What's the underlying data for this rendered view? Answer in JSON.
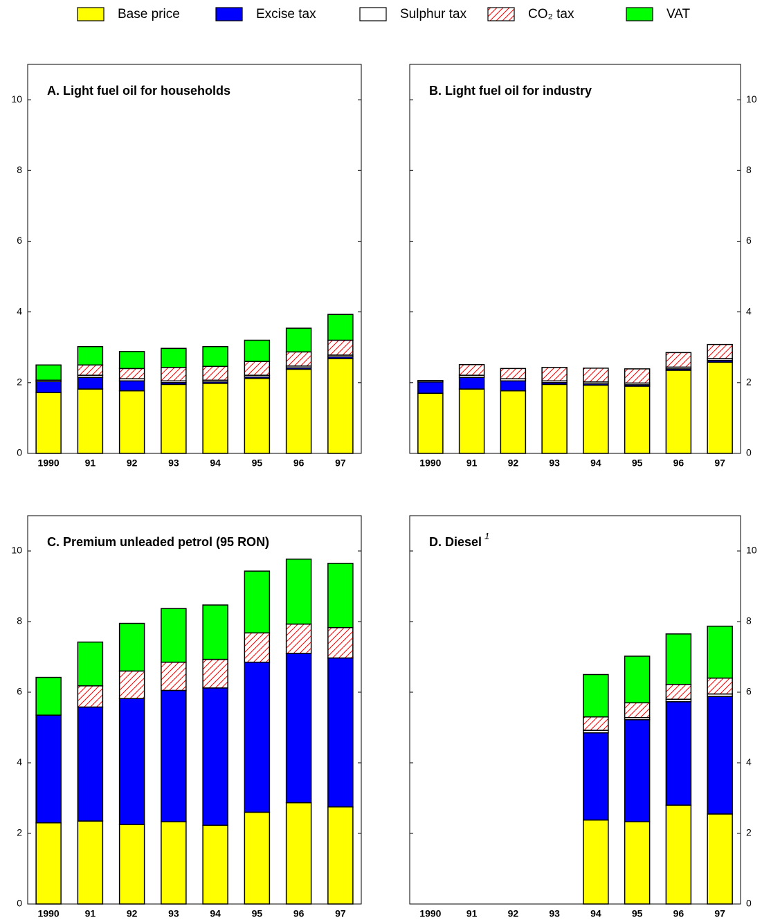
{
  "chart_data": [
    {
      "type": "bar",
      "stacked": true,
      "title": "A.  Light fuel oil for households",
      "y_axis_side": "left",
      "categories": [
        "1990",
        "91",
        "92",
        "93",
        "94",
        "95",
        "96",
        "97"
      ],
      "ylim": [
        0,
        11
      ],
      "yticks": [
        0,
        2,
        4,
        6,
        8,
        10
      ],
      "series": [
        {
          "name": "Base price",
          "color": "#ffff00",
          "values": [
            1.72,
            1.82,
            1.77,
            1.95,
            1.98,
            2.12,
            2.38,
            2.68
          ]
        },
        {
          "name": "Excise tax",
          "color": "#0000ff",
          "values": [
            0.31,
            0.33,
            0.28,
            0.05,
            0.04,
            0.04,
            0.04,
            0.05
          ]
        },
        {
          "name": "Sulphur tax",
          "color": "#ffffff",
          "values": [
            0.04,
            0.06,
            0.06,
            0.05,
            0.05,
            0.05,
            0.05,
            0.05
          ]
        },
        {
          "name": "CO₂ tax",
          "color": "#ff0000",
          "pattern": "hatch",
          "values": [
            null,
            0.29,
            0.29,
            0.38,
            0.39,
            0.39,
            0.4,
            0.42
          ]
        },
        {
          "name": "VAT",
          "color": "#00ff00",
          "values": [
            0.43,
            0.52,
            0.48,
            0.54,
            0.56,
            0.6,
            0.67,
            0.73
          ]
        }
      ]
    },
    {
      "type": "bar",
      "stacked": true,
      "title": "B.  Light fuel oil for industry",
      "y_axis_side": "right",
      "categories": [
        "1990",
        "91",
        "92",
        "93",
        "94",
        "95",
        "96",
        "97"
      ],
      "ylim": [
        0,
        11
      ],
      "yticks": [
        0,
        2,
        4,
        6,
        8,
        10
      ],
      "series": [
        {
          "name": "Base price",
          "color": "#ffff00",
          "values": [
            1.7,
            1.82,
            1.77,
            1.95,
            1.93,
            1.9,
            2.35,
            2.58
          ]
        },
        {
          "name": "Excise tax",
          "color": "#0000ff",
          "values": [
            0.32,
            0.33,
            0.28,
            0.05,
            0.04,
            0.04,
            0.04,
            0.05
          ]
        },
        {
          "name": "Sulphur tax",
          "color": "#ffffff",
          "values": [
            0.04,
            0.06,
            0.06,
            0.05,
            0.05,
            0.05,
            0.05,
            0.05
          ]
        },
        {
          "name": "CO₂ tax",
          "color": "#ff0000",
          "pattern": "hatch",
          "values": [
            null,
            0.3,
            0.29,
            0.38,
            0.39,
            0.4,
            0.41,
            0.4
          ]
        },
        {
          "name": "VAT",
          "color": "#00ff00",
          "values": [
            null,
            null,
            null,
            null,
            null,
            null,
            null,
            null
          ]
        }
      ]
    },
    {
      "type": "bar",
      "stacked": true,
      "title": "C.  Premium unleaded petrol (95 RON)",
      "y_axis_side": "left",
      "categories": [
        "1990",
        "91",
        "92",
        "93",
        "94",
        "95",
        "96",
        "97"
      ],
      "ylim": [
        0,
        11
      ],
      "yticks": [
        0,
        2,
        4,
        6,
        8,
        10
      ],
      "series": [
        {
          "name": "Base price",
          "color": "#ffff00",
          "values": [
            2.3,
            2.35,
            2.25,
            2.33,
            2.23,
            2.6,
            2.87,
            2.75
          ]
        },
        {
          "name": "Excise tax",
          "color": "#0000ff",
          "values": [
            3.05,
            3.23,
            3.57,
            3.72,
            3.89,
            4.25,
            4.23,
            4.22
          ]
        },
        {
          "name": "Sulphur tax",
          "color": "#ffffff",
          "values": [
            null,
            null,
            null,
            null,
            null,
            null,
            null,
            null
          ]
        },
        {
          "name": "CO₂ tax",
          "color": "#ff0000",
          "pattern": "hatch",
          "values": [
            null,
            0.6,
            0.78,
            0.8,
            0.81,
            0.83,
            0.83,
            0.86
          ]
        },
        {
          "name": "VAT",
          "color": "#00ff00",
          "values": [
            1.07,
            1.24,
            1.35,
            1.52,
            1.54,
            1.75,
            1.84,
            1.82
          ]
        }
      ]
    },
    {
      "type": "bar",
      "stacked": true,
      "title": "D.  Diesel",
      "title_note": "1",
      "y_axis_side": "right",
      "categories": [
        "1990",
        "91",
        "92",
        "93",
        "94",
        "95",
        "96",
        "97"
      ],
      "ylim": [
        0,
        11
      ],
      "yticks": [
        0,
        2,
        4,
        6,
        8,
        10
      ],
      "series": [
        {
          "name": "Base price",
          "color": "#ffff00",
          "values": [
            null,
            null,
            null,
            null,
            2.38,
            2.33,
            2.8,
            2.55
          ]
        },
        {
          "name": "Excise tax",
          "color": "#0000ff",
          "values": [
            null,
            null,
            null,
            null,
            2.47,
            2.89,
            2.93,
            3.33
          ]
        },
        {
          "name": "Sulphur tax",
          "color": "#ffffff",
          "values": [
            null,
            null,
            null,
            null,
            0.07,
            0.06,
            0.07,
            0.07
          ]
        },
        {
          "name": "CO₂ tax",
          "color": "#ff0000",
          "pattern": "hatch",
          "values": [
            null,
            null,
            null,
            null,
            0.38,
            0.42,
            0.42,
            0.45
          ]
        },
        {
          "name": "VAT",
          "color": "#00ff00",
          "values": [
            null,
            null,
            null,
            null,
            1.2,
            1.32,
            1.43,
            1.47
          ]
        }
      ]
    }
  ]
}
